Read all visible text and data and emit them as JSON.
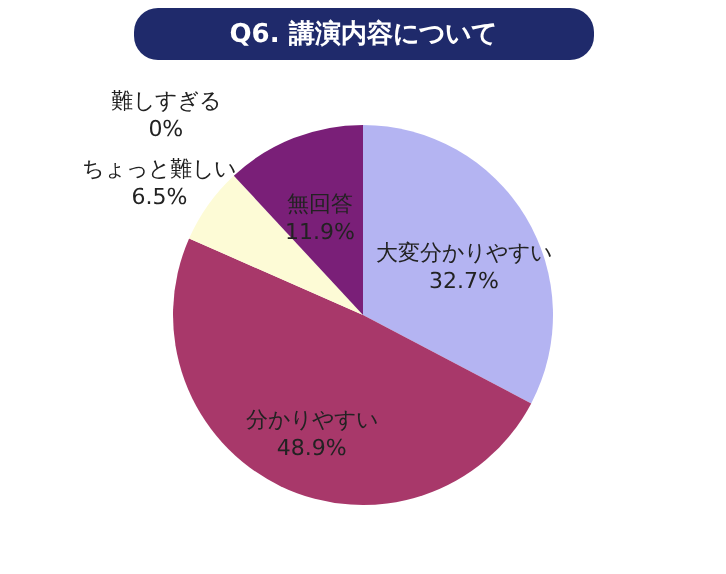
{
  "chart_data": {
    "type": "pie",
    "title": "Q6. 講演内容について",
    "categories": [
      "大変分かりやすい",
      "分かりやすい",
      "ちょっと難しい",
      "難しすぎる",
      "無回答"
    ],
    "values": [
      32.7,
      48.9,
      6.5,
      0,
      11.9
    ],
    "value_labels": [
      "32.7%",
      "48.9%",
      "6.5%",
      "0%",
      "11.9%"
    ],
    "colors": [
      "#b4b4f2",
      "#a8386a",
      "#fdfbd6",
      "#cccccc",
      "#7a1f78"
    ]
  }
}
